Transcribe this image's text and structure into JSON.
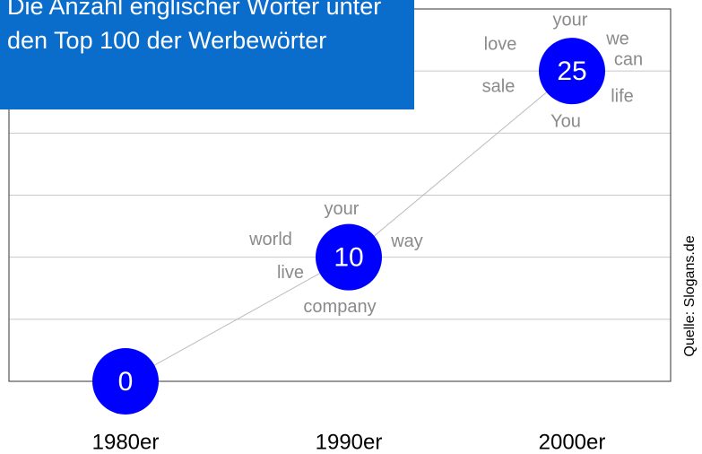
{
  "chart_data": {
    "type": "line",
    "title": "Die Anzahl englischer Wörter unter den Top 100 der Werbewörter",
    "categories": [
      "1980er",
      "1990er",
      "2000er"
    ],
    "values": [
      0,
      10,
      25
    ],
    "color": "#0000ff",
    "ylim": [
      0,
      30
    ],
    "yticks": [
      0,
      5,
      10,
      15,
      20,
      25,
      30
    ],
    "grid": true,
    "words": [
      [],
      [
        "your",
        "world",
        "way",
        "live",
        "company"
      ],
      [
        "your",
        "love",
        "we",
        "can",
        "sale",
        "life",
        "You"
      ]
    ],
    "source": "Quelle: Slogans.de"
  }
}
